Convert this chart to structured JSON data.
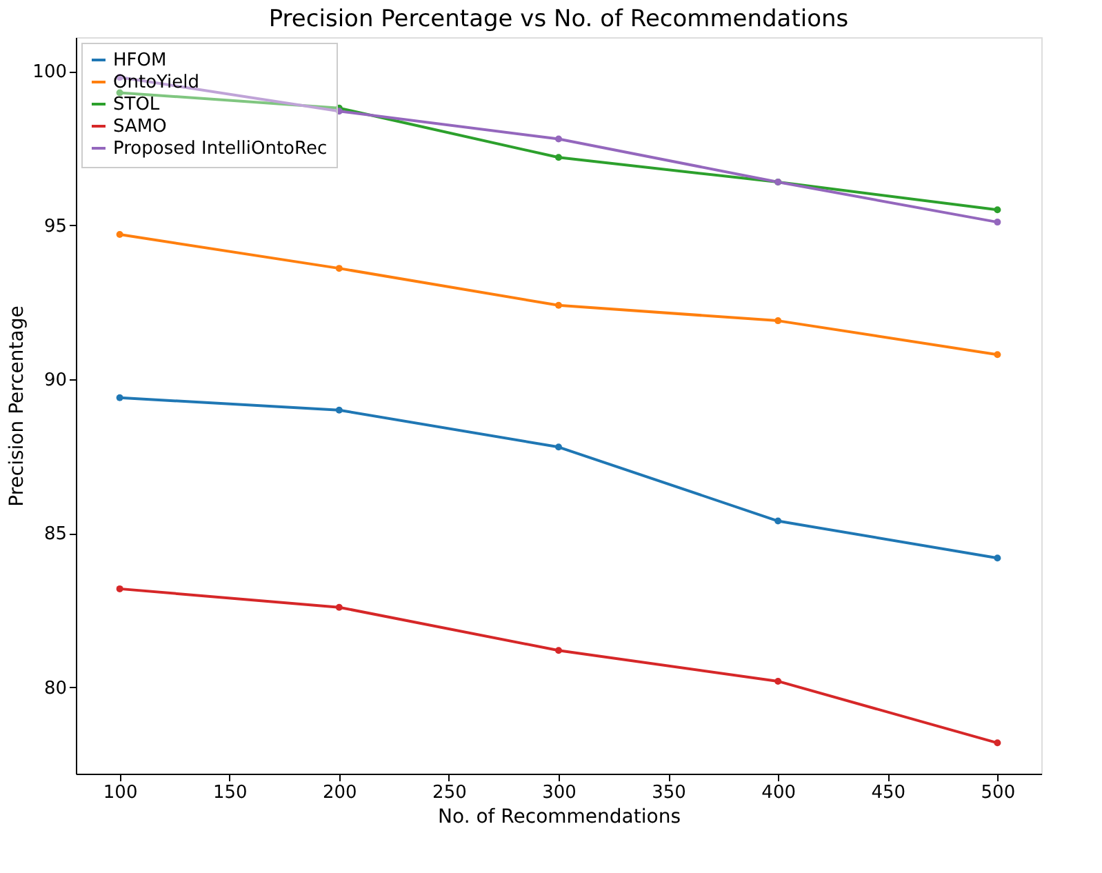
{
  "chart_data": {
    "type": "line",
    "title": "Precision Percentage vs No. of Recommendations",
    "xlabel": "No. of Recommendations",
    "ylabel": "Precision Percentage",
    "x": [
      100,
      200,
      300,
      400,
      500
    ],
    "xlim": [
      80,
      520
    ],
    "xticks": [
      100,
      150,
      200,
      250,
      300,
      350,
      400,
      450,
      500
    ],
    "ylim": [
      77.2,
      101.1
    ],
    "yticks": [
      80,
      85,
      90,
      95,
      100
    ],
    "grid": false,
    "legend": "top left",
    "marker": "circle",
    "line_style": "solid",
    "series": [
      {
        "name": "HFOM",
        "color": "#1f77b4",
        "values": [
          89.4,
          89.0,
          87.8,
          85.4,
          84.2
        ]
      },
      {
        "name": "OntoYield",
        "color": "#ff7f0e",
        "values": [
          94.7,
          93.6,
          92.4,
          91.9,
          90.8
        ]
      },
      {
        "name": "STOL",
        "color": "#2ca02c",
        "values": [
          99.3,
          98.8,
          97.2,
          96.4,
          95.5
        ]
      },
      {
        "name": "SAMO",
        "color": "#d62728",
        "values": [
          83.2,
          82.6,
          81.2,
          80.2,
          78.2
        ]
      },
      {
        "name": "Proposed IntelliOntoRec",
        "color": "#9467bd",
        "values": [
          99.8,
          98.7,
          97.8,
          96.4,
          95.1
        ]
      }
    ]
  }
}
